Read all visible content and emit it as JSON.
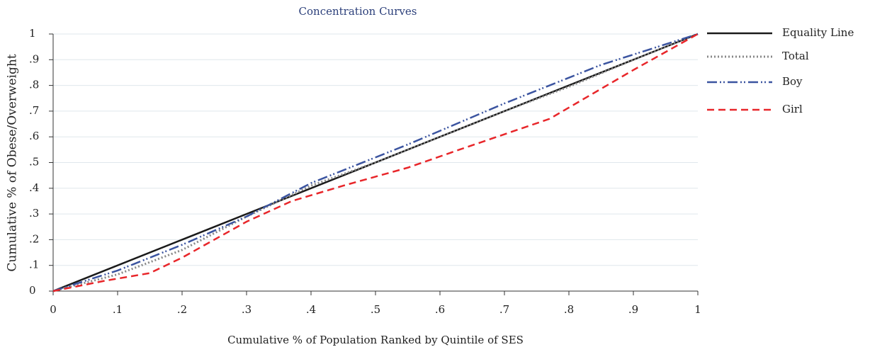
{
  "chart_data": {
    "type": "line",
    "title": "Concentration Curves",
    "xlabel": "Cumulative % of Population Ranked by Quintile of SES",
    "ylabel": "Cumulative % of Obese/Overweight",
    "xlim": [
      0,
      1
    ],
    "ylim": [
      0,
      1
    ],
    "xticks": [
      0,
      {
        "value": 0.1,
        "label": ".1"
      },
      {
        "value": 0.2,
        "label": ".2"
      },
      {
        "value": 0.3,
        "label": ".3"
      },
      {
        "value": 0.4,
        "label": ".4"
      },
      {
        "value": 0.5,
        "label": ".5"
      },
      {
        "value": 0.6,
        "label": ".6"
      },
      {
        "value": 0.7,
        "label": ".7"
      },
      {
        "value": 0.8,
        "label": ".8"
      },
      {
        "value": 0.9,
        "label": ".9"
      },
      1
    ],
    "yticks": [
      0,
      {
        "value": 0.1,
        "label": ".1"
      },
      {
        "value": 0.2,
        "label": ".2"
      },
      {
        "value": 0.3,
        "label": ".3"
      },
      {
        "value": 0.4,
        "label": ".4"
      },
      {
        "value": 0.5,
        "label": ".5"
      },
      {
        "value": 0.6,
        "label": ".6"
      },
      {
        "value": 0.7,
        "label": ".7"
      },
      {
        "value": 0.8,
        "label": ".8"
      },
      {
        "value": 0.9,
        "label": ".9"
      },
      1
    ],
    "grid": true,
    "legend": "right",
    "series": [
      {
        "name": "Equality Line",
        "color": "#1a1a1a",
        "x": [
          0,
          1
        ],
        "values": [
          0,
          1
        ]
      },
      {
        "name": "Total",
        "color": "#888888",
        "x": [
          0,
          0.1,
          0.2,
          0.3,
          0.4,
          0.5,
          0.6,
          0.7,
          0.8,
          0.9,
          1
        ],
        "values": [
          0,
          0.065,
          0.16,
          0.29,
          0.41,
          0.5,
          0.6,
          0.7,
          0.795,
          0.9,
          1
        ]
      },
      {
        "name": "Boy",
        "color": "#3b54a0",
        "x": [
          0,
          0.1,
          0.2,
          0.3,
          0.4,
          0.55,
          0.7,
          0.85,
          1
        ],
        "values": [
          0,
          0.08,
          0.18,
          0.29,
          0.42,
          0.57,
          0.73,
          0.88,
          1
        ]
      },
      {
        "name": "Girl",
        "color": "#e8262a",
        "x": [
          0,
          0.08,
          0.15,
          0.2,
          0.3,
          0.37,
          0.45,
          0.55,
          0.63,
          0.77,
          0.9,
          1
        ],
        "values": [
          0,
          0.04,
          0.07,
          0.13,
          0.27,
          0.35,
          0.41,
          0.48,
          0.55,
          0.67,
          0.86,
          1
        ]
      }
    ]
  }
}
